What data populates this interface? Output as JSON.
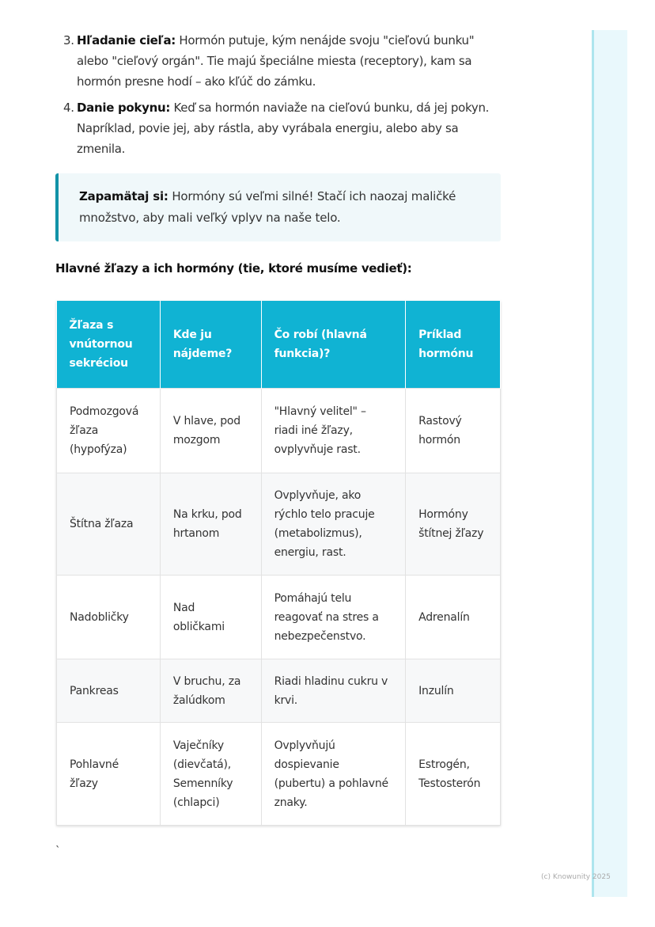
{
  "list": [
    {
      "num": "3.",
      "bold": "Hľadanie cieľa:",
      "text": " Hormón putuje, kým nenájde svoju \"cieľovú bunku\" alebo \"cieľový orgán\". Tie majú špeciálne miesta (receptory), kam sa hormón presne hodí – ako kľúč do zámku."
    },
    {
      "num": "4.",
      "bold": "Danie pokynu:",
      "text": " Keď sa hormón naviaže na cieľovú bunku, dá jej pokyn. Napríklad, povie jej, aby rástla, aby vyrábala energiu, alebo aby sa zmenila."
    }
  ],
  "note": {
    "bold": "Zapamätaj si:",
    "text": " Hormóny sú veľmi silné! Stačí ich naozaj maličké množstvo, aby mali veľký vplyv na naše telo."
  },
  "heading": "Hlavné žľazy a ich hormóny (tie, ktoré musíme vedieť):",
  "table": {
    "headers": [
      "Žľaza s vnútornou sekréciou",
      "Kde ju nájdeme?",
      "Čo robí (hlavná funkcia)?",
      "Príklad hormónu"
    ],
    "rows": [
      [
        "Podmozgová žľaza (hypofýza)",
        "V hlave, pod mozgom",
        "\"Hlavný velitel\" – riadi iné žľazy, ovplyvňuje rast.",
        "Rastový hormón"
      ],
      [
        "Štítna žľaza",
        "Na krku, pod hrtanom",
        "Ovplyvňuje, ako rýchlo telo pracuje (metabolizmus), energiu, rast.",
        "Hormóny štítnej žľazy"
      ],
      [
        "Nadobličky",
        "Nad obličkami",
        "Pomáhajú telu reagovať na stres a nebezpečenstvo.",
        "Adrenalín"
      ],
      [
        "Pankreas",
        "V bruchu, za žalúdkom",
        "Riadi hladinu cukru v krvi.",
        "Inzulín"
      ],
      [
        "Pohlavné žľazy",
        "Vaječníky (dievčatá), Semenníky (chlapci)",
        "Ovplyvňujú dospievanie (pubertu) a pohlavné znaky.",
        "Estrogén, Testosterón"
      ]
    ]
  },
  "stray_mark": "`",
  "footer": "(c) Knowunity 2025",
  "colors": {
    "header": "#10b3d3",
    "note_border": "#1293a8",
    "note_bg": "#f0f8fa"
  }
}
